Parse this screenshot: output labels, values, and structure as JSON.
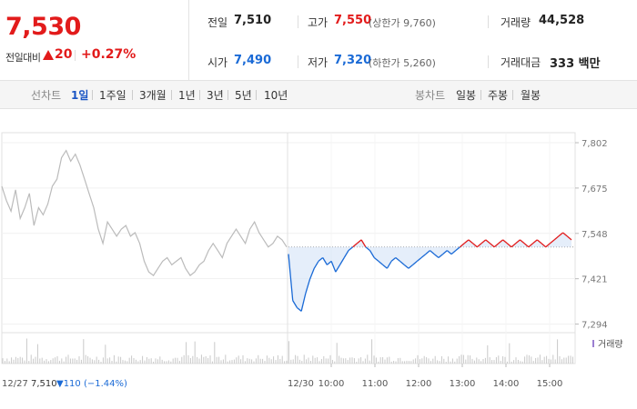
{
  "summary": {
    "price": "7,530",
    "change_label": "전일대비",
    "change": "20",
    "change_pct": "+0.27%"
  },
  "stats": {
    "prev_label": "전일",
    "prev": "7,510",
    "high_label": "고가",
    "high": "7,550",
    "upper_limit": "(상한가 9,760)",
    "volume_label": "거래량",
    "volume": "44,528",
    "open_label": "시가",
    "open": "7,490",
    "low_label": "저가",
    "low": "7,320",
    "lower_limit": "(하한가 5,260)",
    "amount_label": "거래대금",
    "amount": "333 백만"
  },
  "toolbar": {
    "line_label": "선차트",
    "line_periods": [
      "1일",
      "1주일",
      "3개월",
      "1년",
      "3년",
      "5년",
      "10년"
    ],
    "active_period": "1일",
    "candle_label": "봉차트",
    "candle_periods": [
      "일봉",
      "주봉",
      "월봉"
    ]
  },
  "colors": {
    "up": "#e21b1b",
    "down": "#1a6ad6",
    "prev_day": "#bbbbbb"
  },
  "chart_data": {
    "type": "line",
    "y_ticks": [
      7802,
      7675,
      7548,
      7421,
      7294
    ],
    "y_tick_labels": [
      "7,802",
      "7,675",
      "7,548",
      "7,421",
      "7,294"
    ],
    "ylim": [
      7270,
      7830
    ],
    "baseline": 7510,
    "prev_day": {
      "label": "12/27",
      "close": "7,510",
      "change": "▼110 (−1.44%)",
      "values": [
        7680,
        7640,
        7610,
        7670,
        7590,
        7620,
        7660,
        7570,
        7620,
        7600,
        7630,
        7680,
        7700,
        7760,
        7780,
        7750,
        7770,
        7740,
        7700,
        7660,
        7620,
        7560,
        7520,
        7580,
        7560,
        7540,
        7560,
        7570,
        7540,
        7550,
        7520,
        7470,
        7440,
        7430,
        7450,
        7470,
        7480,
        7460,
        7470,
        7480,
        7450,
        7430,
        7440,
        7460,
        7470,
        7500,
        7520,
        7500,
        7480,
        7520,
        7540,
        7560,
        7540,
        7520,
        7560,
        7580,
        7550,
        7530,
        7510,
        7520,
        7540,
        7530,
        7510
      ]
    },
    "today": {
      "label": "12/30",
      "x_labels": [
        "10:00",
        "11:00",
        "12:00",
        "13:00",
        "14:00",
        "15:00"
      ],
      "values": [
        7490,
        7360,
        7340,
        7330,
        7380,
        7420,
        7450,
        7470,
        7480,
        7460,
        7470,
        7440,
        7460,
        7480,
        7500,
        7510,
        7520,
        7530,
        7510,
        7500,
        7480,
        7470,
        7460,
        7450,
        7470,
        7480,
        7470,
        7460,
        7450,
        7460,
        7470,
        7480,
        7490,
        7500,
        7490,
        7480,
        7490,
        7500,
        7490,
        7500,
        7510,
        7520,
        7530,
        7520,
        7510,
        7520,
        7530,
        7520,
        7510,
        7520,
        7530,
        7520,
        7510,
        7520,
        7530,
        7520,
        7510,
        7520,
        7530,
        7520,
        7510,
        7520,
        7530,
        7540,
        7550,
        7540,
        7530
      ]
    },
    "volume_label": "거래량"
  }
}
